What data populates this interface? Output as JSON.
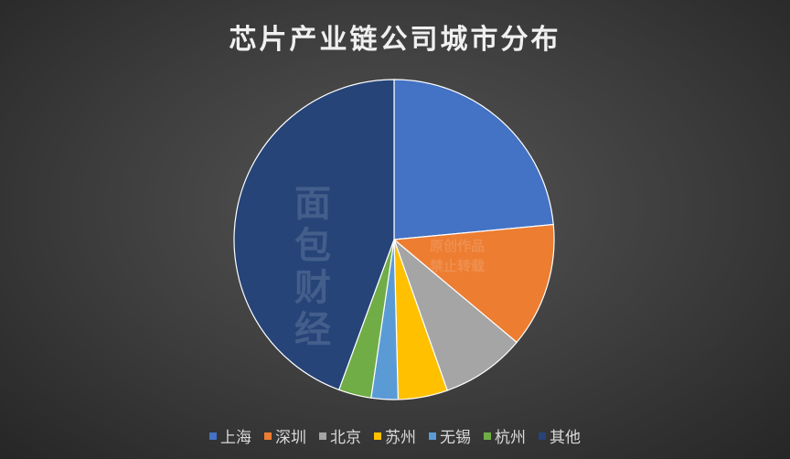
{
  "chart_data": {
    "type": "pie",
    "title": "芯片产业链公司城市分布",
    "categories": [
      "上海",
      "深圳",
      "北京",
      "苏州",
      "无锡",
      "杭州",
      "其他"
    ],
    "values": [
      23.5,
      12.6,
      8.5,
      5.0,
      2.7,
      3.3,
      44.4
    ],
    "unit": "%",
    "start_angle": "12 o'clock",
    "direction": "clockwise",
    "colors": [
      "#4472c4",
      "#ed7d31",
      "#a5a5a5",
      "#ffc000",
      "#5b9bd5",
      "#70ad47",
      "#264478"
    ],
    "legend_position": "bottom"
  },
  "watermark": {
    "logo": "面包财经",
    "line1": "原创作品",
    "line2": "禁止转载"
  }
}
